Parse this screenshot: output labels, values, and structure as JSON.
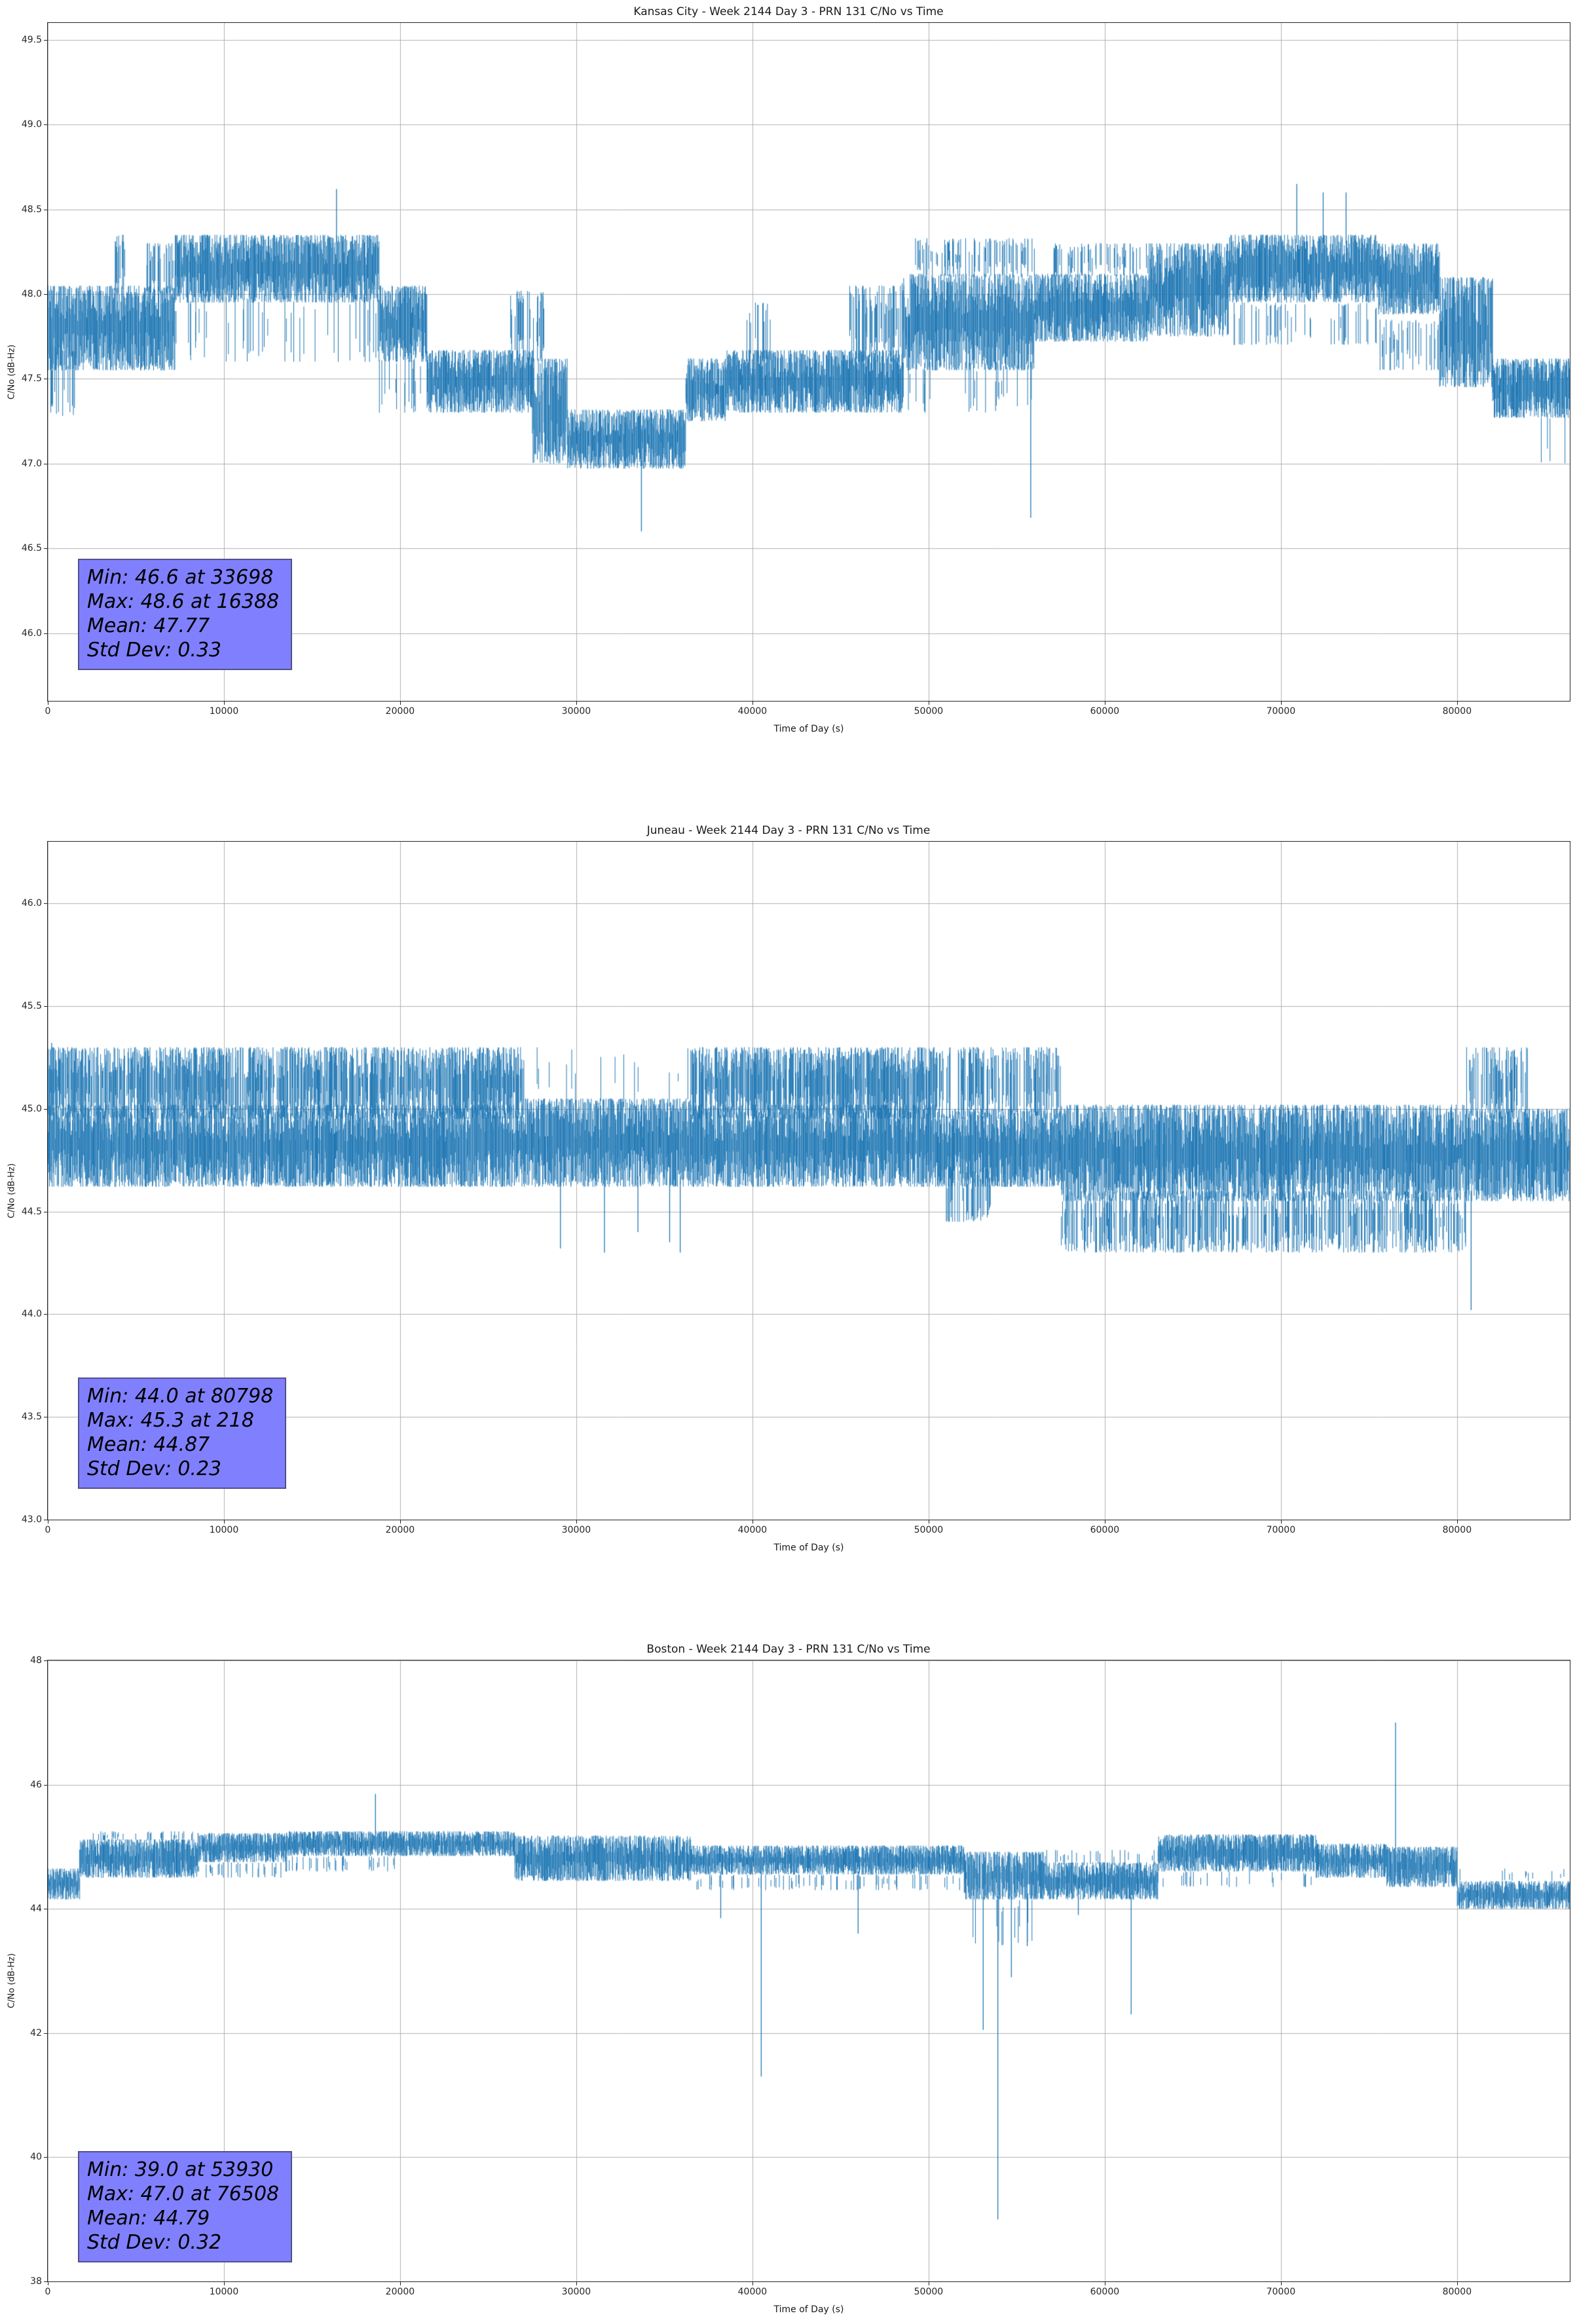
{
  "style": {
    "line_color": "#1f77b4",
    "grid_color": "#b0b0b0",
    "axis_color": "#262626",
    "annotation_bg": "#8080ff",
    "annotation_text": "#000000",
    "background": "#ffffff"
  },
  "chart_data": [
    {
      "type": "line",
      "title": "Kansas City - Week 2144 Day 3 - PRN 131 C/No vs Time",
      "xlabel": "Time of Day (s)",
      "ylabel": "C/No (dB-Hz)",
      "xlim": [
        0,
        86400
      ],
      "ylim": [
        45.6,
        49.6
      ],
      "grid": true,
      "xticks": [
        0,
        10000,
        20000,
        30000,
        40000,
        50000,
        60000,
        70000,
        80000
      ],
      "xtick_labels": [
        "0",
        "10000",
        "20000",
        "30000",
        "40000",
        "50000",
        "60000",
        "70000",
        "80000"
      ],
      "yticks": [
        46.0,
        46.5,
        47.0,
        47.5,
        48.0,
        48.5,
        49.0,
        49.5
      ],
      "ytick_labels": [
        "46.0",
        "46.5",
        "47.0",
        "47.5",
        "48.0",
        "48.5",
        "49.0",
        "49.5"
      ],
      "stats": {
        "min": 46.6,
        "min_time": 33698,
        "max": 48.6,
        "max_time": 16388,
        "mean": 47.77,
        "std_dev": 0.33
      },
      "annotation": [
        "Min: 46.6 at 33698",
        "Max: 48.6 at 16388",
        "Mean: 47.77",
        "Std Dev: 0.33"
      ],
      "series_bands": [
        [
          0,
          1800,
          47.55,
          48.05,
          1
        ],
        [
          0,
          1500,
          47.28,
          47.7,
          0.35
        ],
        [
          1800,
          7200,
          47.55,
          48.05,
          1
        ],
        [
          3600,
          4400,
          48.0,
          48.35,
          0.5
        ],
        [
          5600,
          7400,
          48.0,
          48.3,
          0.45
        ],
        [
          7200,
          18800,
          47.95,
          48.35,
          1
        ],
        [
          7200,
          18800,
          47.6,
          48.0,
          0.12
        ],
        [
          18800,
          21500,
          47.6,
          48.05,
          1
        ],
        [
          18800,
          21500,
          47.3,
          47.62,
          0.15
        ],
        [
          21500,
          27500,
          47.3,
          47.67,
          1
        ],
        [
          26200,
          28200,
          47.6,
          48.02,
          0.45
        ],
        [
          27500,
          29500,
          47.0,
          47.62,
          0.85
        ],
        [
          29500,
          36200,
          46.97,
          47.32,
          1
        ],
        [
          36200,
          38500,
          47.25,
          47.62,
          1
        ],
        [
          38500,
          48500,
          47.3,
          47.67,
          1
        ],
        [
          39500,
          41000,
          47.6,
          47.95,
          0.25
        ],
        [
          45500,
          48500,
          47.6,
          48.05,
          0.4
        ],
        [
          48500,
          56000,
          47.55,
          48.12,
          1
        ],
        [
          48500,
          56000,
          47.3,
          47.6,
          0.1
        ],
        [
          49000,
          56000,
          48.1,
          48.33,
          0.35
        ],
        [
          56000,
          62500,
          47.72,
          48.12,
          1
        ],
        [
          57000,
          62500,
          48.1,
          48.3,
          0.25
        ],
        [
          62500,
          67000,
          47.75,
          48.3,
          1
        ],
        [
          67000,
          75500,
          47.95,
          48.35,
          1
        ],
        [
          67000,
          75500,
          47.7,
          47.95,
          0.15
        ],
        [
          75500,
          79000,
          47.88,
          48.3,
          1
        ],
        [
          75500,
          79000,
          47.55,
          47.85,
          0.2
        ],
        [
          79000,
          82000,
          47.45,
          48.1,
          0.9
        ],
        [
          82000,
          86400,
          47.27,
          47.62,
          1
        ],
        [
          83800,
          86400,
          47.0,
          47.3,
          0.12
        ]
      ],
      "spikes": [
        [
          16388,
          48.62
        ],
        [
          33698,
          46.6
        ],
        [
          55800,
          46.68
        ],
        [
          70900,
          48.65
        ],
        [
          72400,
          48.6
        ],
        [
          73700,
          48.6
        ]
      ]
    },
    {
      "type": "line",
      "title": "Juneau - Week 2144 Day 3 - PRN 131 C/No vs Time",
      "xlabel": "Time of Day (s)",
      "ylabel": "C/No (dB-Hz)",
      "xlim": [
        0,
        86400
      ],
      "ylim": [
        43.0,
        46.3
      ],
      "grid": true,
      "xticks": [
        0,
        10000,
        20000,
        30000,
        40000,
        50000,
        60000,
        70000,
        80000
      ],
      "xtick_labels": [
        "0",
        "10000",
        "20000",
        "30000",
        "40000",
        "50000",
        "60000",
        "70000",
        "80000"
      ],
      "yticks": [
        43.0,
        43.5,
        44.0,
        44.5,
        45.0,
        45.5,
        46.0
      ],
      "ytick_labels": [
        "43.0",
        "43.5",
        "44.0",
        "44.5",
        "45.0",
        "45.5",
        "46.0"
      ],
      "stats": {
        "min": 44.0,
        "min_time": 80798,
        "max": 45.3,
        "max_time": 218,
        "mean": 44.87,
        "std_dev": 0.23
      },
      "annotation": [
        "Min: 44.0 at 80798",
        "Max: 45.3 at 218",
        "Mean: 44.87",
        "Std Dev: 0.23"
      ],
      "series_bands": [
        [
          0,
          27000,
          44.62,
          45.02,
          1
        ],
        [
          0,
          27000,
          44.95,
          45.3,
          0.8
        ],
        [
          27000,
          36500,
          44.62,
          45.05,
          1
        ],
        [
          27000,
          36500,
          45.0,
          45.3,
          0.06
        ],
        [
          36500,
          50500,
          44.62,
          45.02,
          1
        ],
        [
          36500,
          50500,
          44.95,
          45.3,
          0.8
        ],
        [
          50500,
          57500,
          44.62,
          45.0,
          1
        ],
        [
          50500,
          57500,
          44.95,
          45.3,
          0.5
        ],
        [
          51000,
          53500,
          44.45,
          44.72,
          0.45
        ],
        [
          57500,
          80500,
          44.55,
          45.02,
          1
        ],
        [
          57500,
          80500,
          44.3,
          44.6,
          0.5
        ],
        [
          80500,
          86400,
          44.55,
          45.0,
          1
        ],
        [
          80500,
          84000,
          44.95,
          45.3,
          0.45
        ]
      ],
      "spikes": [
        [
          218,
          45.32
        ],
        [
          29100,
          44.32
        ],
        [
          31600,
          44.3
        ],
        [
          33500,
          44.4
        ],
        [
          35300,
          44.35
        ],
        [
          35900,
          44.3
        ],
        [
          80798,
          44.02
        ]
      ]
    },
    {
      "type": "line",
      "title": "Boston - Week 2144 Day 3 - PRN 131 C/No vs Time",
      "xlabel": "Time of Day (s)",
      "ylabel": "C/No (dB-Hz)",
      "xlim": [
        0,
        86400
      ],
      "ylim": [
        38,
        48
      ],
      "grid": true,
      "xticks": [
        0,
        10000,
        20000,
        30000,
        40000,
        50000,
        60000,
        70000,
        80000
      ],
      "xtick_labels": [
        "0",
        "10000",
        "20000",
        "30000",
        "40000",
        "50000",
        "60000",
        "70000",
        "80000"
      ],
      "yticks": [
        38,
        40,
        42,
        44,
        46,
        48
      ],
      "ytick_labels": [
        "38",
        "40",
        "42",
        "44",
        "46",
        "48"
      ],
      "stats": {
        "min": 39.0,
        "min_time": 53930,
        "max": 47.0,
        "max_time": 76508,
        "mean": 44.79,
        "std_dev": 0.32
      },
      "annotation": [
        "Min: 39.0 at 53930",
        "Max: 47.0 at 76508",
        "Mean: 44.79",
        "Std Dev: 0.32"
      ],
      "series_bands": [
        [
          0,
          1800,
          44.15,
          44.65,
          1
        ],
        [
          1800,
          8500,
          44.5,
          45.12,
          1
        ],
        [
          2500,
          8500,
          45.1,
          45.25,
          0.15
        ],
        [
          8500,
          13500,
          44.75,
          45.22,
          1
        ],
        [
          8500,
          13500,
          44.5,
          44.75,
          0.2
        ],
        [
          13500,
          26500,
          44.85,
          45.25,
          1
        ],
        [
          13500,
          20000,
          44.6,
          44.85,
          0.15
        ],
        [
          26500,
          36500,
          44.45,
          45.18,
          1
        ],
        [
          36500,
          52000,
          44.55,
          45.02,
          1
        ],
        [
          36500,
          52000,
          44.3,
          44.55,
          0.12
        ],
        [
          52000,
          56500,
          44.15,
          44.92,
          0.95
        ],
        [
          52500,
          56000,
          43.4,
          44.3,
          0.18
        ],
        [
          56500,
          63000,
          44.15,
          44.75,
          1
        ],
        [
          56500,
          63000,
          44.7,
          44.95,
          0.12
        ],
        [
          63000,
          72000,
          44.6,
          45.2,
          1
        ],
        [
          63000,
          72000,
          44.35,
          44.6,
          0.08
        ],
        [
          72000,
          76000,
          44.5,
          45.05,
          1
        ],
        [
          76000,
          80000,
          44.35,
          45.0,
          1
        ],
        [
          80000,
          86400,
          44.0,
          44.45,
          1
        ],
        [
          80000,
          86400,
          44.45,
          44.65,
          0.1
        ]
      ],
      "spikes": [
        [
          18600,
          45.85
        ],
        [
          38200,
          43.85
        ],
        [
          40500,
          41.3
        ],
        [
          46000,
          43.6
        ],
        [
          53100,
          42.05
        ],
        [
          53930,
          39.0
        ],
        [
          54700,
          42.9
        ],
        [
          55600,
          43.4
        ],
        [
          58500,
          43.9
        ],
        [
          61500,
          42.3
        ],
        [
          76508,
          47.0
        ]
      ]
    }
  ]
}
